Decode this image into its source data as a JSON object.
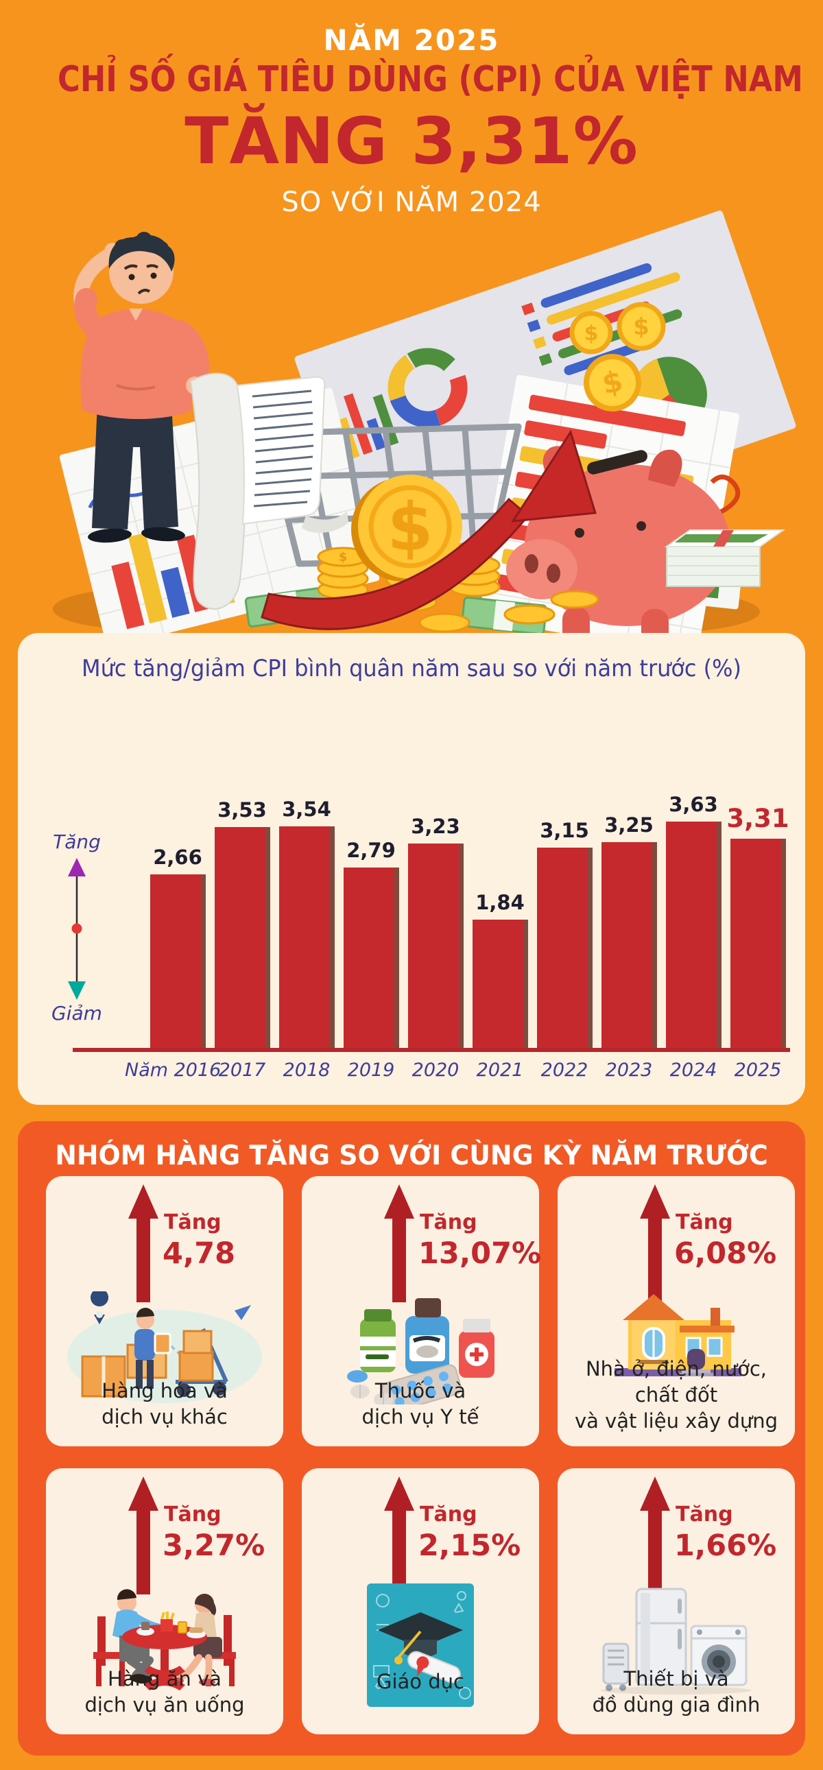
{
  "header": {
    "year_label": "NĂM 2025",
    "title": "CHỈ SỐ GIÁ TIÊU DÙNG (CPI) CỦA VIỆT NAM",
    "highlight": "TĂNG 3,31%",
    "subtitle": "SO VỚI NĂM 2024"
  },
  "colors": {
    "background_orange": "#F7941E",
    "deep_orange_panel": "#F15A25",
    "cream_panel": "#FDF1E0",
    "card_cream": "#FBF0E1",
    "title_red": "#C1272D",
    "bar_red": "#C5292E",
    "bar_edge_shadow": "#7F4B3D",
    "baseline_red": "#B3282D",
    "chart_blue": "#3D3D99",
    "value_label_dark": "#1E1E2E",
    "legend_up_purple": "#9C27B0",
    "legend_down_teal": "#00A99D",
    "legend_dot_red": "#E53935",
    "white": "#FFFFFF"
  },
  "chart_data": {
    "type": "bar",
    "title": "Mức tăng/giảm CPI bình quân năm sau so với năm trước (%)",
    "categories": [
      "Năm 2016",
      "2017",
      "2018",
      "2019",
      "2020",
      "2021",
      "2022",
      "2023",
      "2024",
      "2025"
    ],
    "values": [
      2.66,
      3.53,
      3.54,
      2.79,
      3.23,
      1.84,
      3.15,
      3.25,
      3.63,
      3.31
    ],
    "value_labels": [
      "2,66",
      "3,53",
      "3,54",
      "2,79",
      "3,23",
      "1,84",
      "3,15",
      "3,25",
      "3,63",
      "3,31"
    ],
    "highlight_index": 9,
    "ylabel_increase": "Tăng",
    "ylabel_decrease": "Giảm",
    "unit": "%",
    "grid": false,
    "legend_position": "left",
    "ylim": [
      0,
      4
    ]
  },
  "section": {
    "title": "NHÓM HÀNG TĂNG SO VỚI CÙNG KỲ NĂM TRƯỚC",
    "increase_word": "Tăng",
    "cards": [
      {
        "tang": "Tăng",
        "value": "4,78",
        "caption": "Hàng hóa và\ndịch vụ khác",
        "icon": "goods-delivery-icon"
      },
      {
        "tang": "Tăng",
        "value": "13,07%",
        "caption": "Thuốc và\ndịch vụ Y tế",
        "icon": "medicine-icon"
      },
      {
        "tang": "Tăng",
        "value": "6,08%",
        "caption": "Nhà ở, điện, nước,\nchất đốt\nvà vật liệu xây dựng",
        "icon": "house-icon"
      },
      {
        "tang": "Tăng",
        "value": "3,27%",
        "caption": "Hàng ăn và\ndịch vụ ăn uống",
        "icon": "dining-icon"
      },
      {
        "tang": "Tăng",
        "value": "2,15%",
        "caption": "Giáo dục",
        "icon": "education-icon"
      },
      {
        "tang": "Tăng",
        "value": "1,66%",
        "caption": "Thiết bị và\nđồ dùng gia đình",
        "icon": "appliances-icon"
      }
    ]
  }
}
